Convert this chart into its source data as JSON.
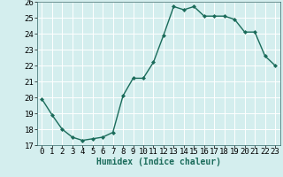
{
  "x": [
    0,
    1,
    2,
    3,
    4,
    5,
    6,
    7,
    8,
    9,
    10,
    11,
    12,
    13,
    14,
    15,
    16,
    17,
    18,
    19,
    20,
    21,
    22,
    23
  ],
  "y": [
    19.9,
    18.9,
    18.0,
    17.5,
    17.3,
    17.4,
    17.5,
    17.8,
    20.1,
    21.2,
    21.2,
    22.2,
    23.9,
    25.7,
    25.5,
    25.7,
    25.1,
    25.1,
    25.1,
    24.9,
    24.1,
    24.1,
    22.6,
    22.0
  ],
  "line_color": "#1a6b5a",
  "marker": "D",
  "marker_size": 2.0,
  "linewidth": 1.0,
  "xlabel": "Humidex (Indice chaleur)",
  "xlabel_fontsize": 7,
  "xlabel_fontweight": "bold",
  "ylim": [
    17,
    26
  ],
  "xlim": [
    -0.5,
    23.5
  ],
  "yticks": [
    17,
    18,
    19,
    20,
    21,
    22,
    23,
    24,
    25,
    26
  ],
  "xticks": [
    0,
    1,
    2,
    3,
    4,
    5,
    6,
    7,
    8,
    9,
    10,
    11,
    12,
    13,
    14,
    15,
    16,
    17,
    18,
    19,
    20,
    21,
    22,
    23
  ],
  "bg_color": "#d4eeee",
  "grid_color": "#ffffff",
  "tick_labelsize": 6.5,
  "spine_color": "#336666"
}
